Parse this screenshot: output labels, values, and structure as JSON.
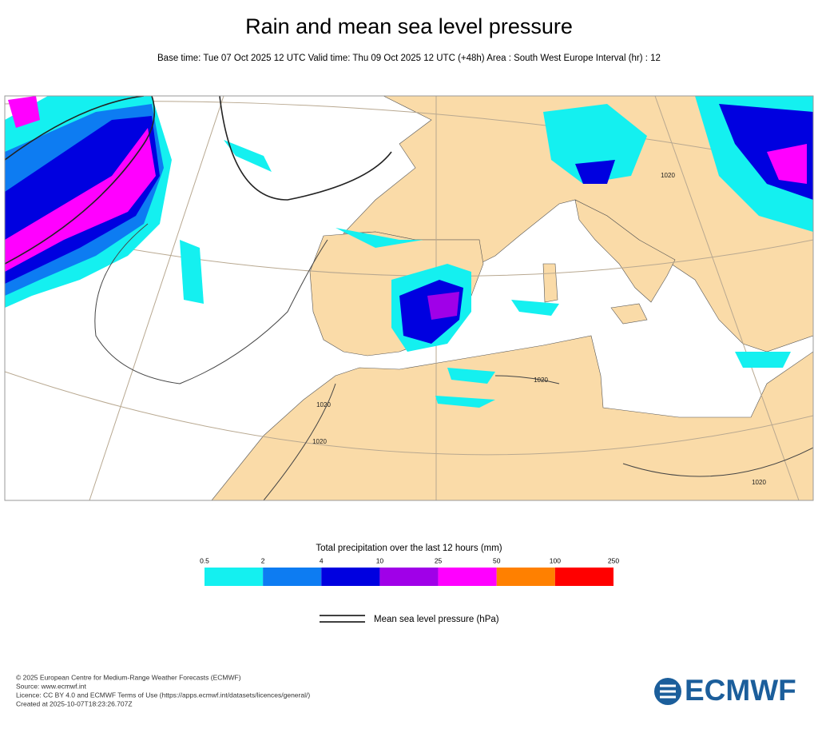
{
  "header": {
    "title": "Rain and mean sea level pressure",
    "subtitle": "Base time: Tue 07 Oct 2025 12 UTC Valid time: Thu 09 Oct 2025 12 UTC (+48h) Area : South West Europe Interval (hr) : 12"
  },
  "map": {
    "isobar_labels": [
      "1020",
      "1020",
      "1020",
      "1020",
      "1020"
    ]
  },
  "legend": {
    "title": "Total precipitation over the last 12 hours (mm)",
    "levels": [
      0.5,
      2,
      4,
      10,
      25,
      50,
      100,
      250
    ],
    "colors": [
      "#14f0f0",
      "#0d7cf2",
      "#0000e0",
      "#a000e8",
      "#ff00ff",
      "#ff8000",
      "#ff0000"
    ],
    "line_label": "Mean sea level pressure (hPa)"
  },
  "footer": {
    "lines": [
      "© 2025 European Centre for Medium-Range Weather Forecasts (ECMWF)",
      "Source: www.ecmwf.int",
      "Licence: CC BY 4.0 and ECMWF Terms of Use (https://apps.ecmwf.int/datasets/licences/general/)",
      "Created at 2025-10-07T18:23:26.707Z"
    ]
  },
  "logo": {
    "text": "ECMWF"
  }
}
